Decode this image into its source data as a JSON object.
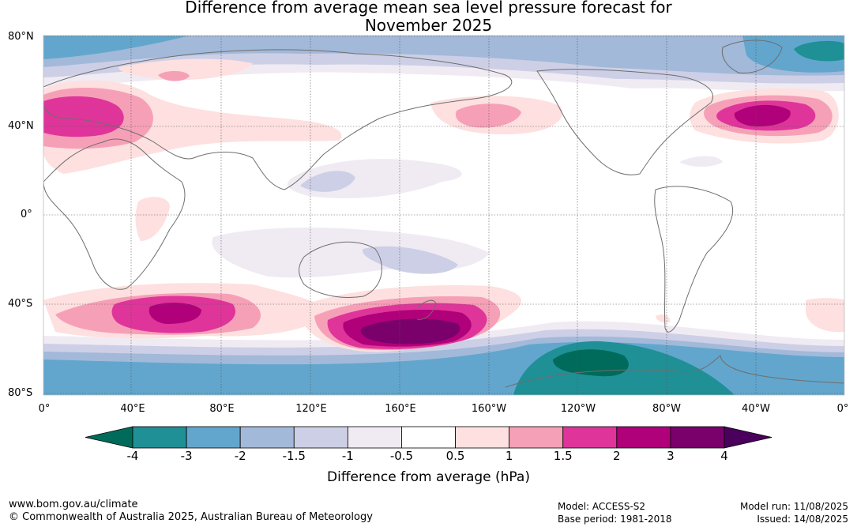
{
  "title_line1": "Difference from average mean sea level pressure forecast for",
  "title_line2": "November 2025",
  "lat_labels": [
    "80°N",
    "40°N",
    "0°",
    "40°S",
    "80°S"
  ],
  "lon_labels": [
    "0°",
    "40°E",
    "80°E",
    "120°E",
    "160°E",
    "160°W",
    "120°W",
    "80°W",
    "40°W",
    "0°"
  ],
  "colorbar": {
    "title": "Difference from average (hPa)",
    "ticks": [
      "-4",
      "-3",
      "-2",
      "-1.5",
      "-1",
      "-0.5",
      "0.5",
      "1",
      "1.5",
      "2",
      "3",
      "4"
    ],
    "colors": [
      "#006b5a",
      "#1f9096",
      "#62a6cd",
      "#a2b9d9",
      "#cdcfe6",
      "#f0ebf3",
      "#ffffff",
      "#fde0df",
      "#f6a0b8",
      "#df359a",
      "#b0007a",
      "#7a006c",
      "#4a005c"
    ]
  },
  "footer": {
    "site": "www.bom.gov.au/climate",
    "copyright": "© Commonwealth of Australia 2025, Australian Bureau of Meteorology",
    "model": "Model: ACCESS-S2",
    "base_period": "Base period: 1981-2018",
    "model_run": "Model run: 11/08/2025",
    "issued": "Issued: 14/08/2025"
  }
}
